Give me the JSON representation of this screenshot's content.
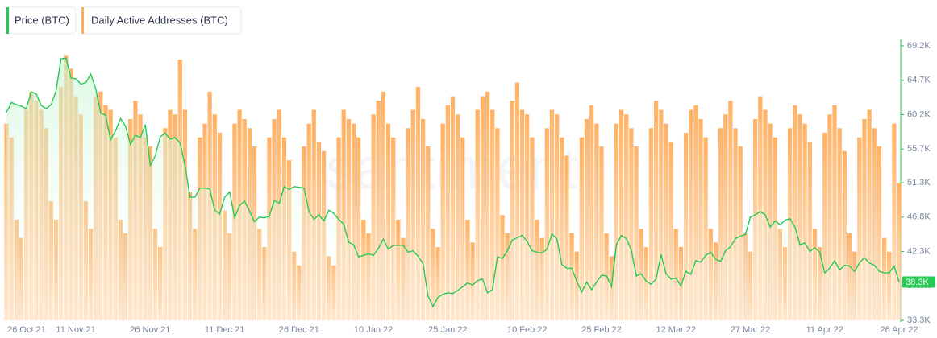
{
  "chart_data": {
    "type": "bar-line",
    "watermark": "santiment",
    "categories": [
      "26 Oct 21",
      null,
      null,
      null,
      null,
      null,
      null,
      null,
      null,
      null,
      null,
      null,
      null,
      null,
      "11 Nov 21",
      null,
      null,
      null,
      null,
      null,
      null,
      null,
      null,
      null,
      null,
      null,
      null,
      null,
      null,
      "26 Nov 21",
      null,
      null,
      null,
      null,
      null,
      null,
      null,
      null,
      null,
      null,
      null,
      null,
      null,
      null,
      "11 Dec 21",
      null,
      null,
      null,
      null,
      null,
      null,
      null,
      null,
      null,
      null,
      null,
      null,
      null,
      null,
      "26 Dec 21",
      null,
      null,
      null,
      null,
      null,
      null,
      null,
      null,
      null,
      null,
      null,
      null,
      null,
      null,
      "10 Jan 22",
      null,
      null,
      null,
      null,
      null,
      null,
      null,
      null,
      null,
      null,
      null,
      null,
      null,
      null,
      "25 Jan 22",
      null,
      null,
      null,
      null,
      null,
      null,
      null,
      null,
      null,
      null,
      null,
      null,
      null,
      null,
      null,
      "10 Feb 22",
      null,
      null,
      null,
      null,
      null,
      null,
      null,
      null,
      null,
      null,
      null,
      null,
      null,
      null,
      "25 Feb 22",
      null,
      null,
      null,
      null,
      null,
      null,
      null,
      null,
      null,
      null,
      null,
      null,
      null,
      null,
      "12 Mar 22",
      null,
      null,
      null,
      null,
      null,
      null,
      null,
      null,
      null,
      null,
      null,
      null,
      null,
      null,
      "27 Mar 22",
      null,
      null,
      null,
      null,
      null,
      null,
      null,
      null,
      null,
      null,
      null,
      null,
      null,
      null,
      "11 Apr 22",
      null,
      null,
      null,
      null,
      null,
      null,
      null,
      null,
      null,
      null,
      null,
      null,
      null,
      null,
      "26 Apr 22"
    ],
    "series": [
      {
        "name": "Price (BTC)",
        "color": "#26c953",
        "kind": "line",
        "values": [
          60500,
          61800,
          61500,
          61300,
          61000,
          63200,
          62900,
          61400,
          61000,
          61500,
          63300,
          67500,
          67600,
          65000,
          64900,
          64200,
          64400,
          65500,
          63600,
          60400,
          60100,
          56900,
          58100,
          59700,
          58700,
          56300,
          57500,
          57200,
          58900,
          53600,
          54800,
          57300,
          57800,
          57000,
          57200,
          56500,
          53600,
          49400,
          49400,
          50600,
          50600,
          50500,
          47700,
          47200,
          49400,
          50100,
          46700,
          48300,
          48900,
          47600,
          46200,
          46800,
          46700,
          46900,
          49000,
          48600,
          50800,
          50400,
          50800,
          50700,
          50600,
          47500,
          46500,
          47100,
          46300,
          47700,
          47300,
          46500,
          45900,
          43500,
          43200,
          41600,
          41800,
          42000,
          41800,
          42700,
          43900,
          42600,
          43100,
          43100,
          43100,
          42200,
          42400,
          41700,
          40700,
          36500,
          35100,
          36300,
          36700,
          36900,
          36800,
          37200,
          37700,
          38200,
          37900,
          38500,
          38700,
          36900,
          37300,
          41600,
          41400,
          42400,
          43800,
          44100,
          44400,
          43600,
          42400,
          42200,
          42100,
          42600,
          44600,
          43900,
          40600,
          40100,
          40100,
          38400,
          37000,
          38300,
          37300,
          38300,
          39200,
          39100,
          37700,
          43200,
          44400,
          44000,
          42500,
          39100,
          39400,
          38400,
          38000,
          38700,
          41900,
          39400,
          38700,
          38800,
          37800,
          39700,
          39300,
          41100,
          40900,
          41800,
          42200,
          41300,
          41000,
          42400,
          42900,
          44000,
          44300,
          44500,
          46800,
          47100,
          47500,
          47100,
          45500,
          46300,
          45800,
          46400,
          46600,
          45500,
          43200,
          43400,
          42300,
          42800,
          42200,
          39500,
          40100,
          41100,
          39900,
          40500,
          40400,
          39700,
          40800,
          41500,
          40800,
          40500,
          39700,
          39500,
          39500,
          40400,
          38300
        ],
        "value_labels": [
          null,
          null,
          null,
          null,
          null,
          null,
          null,
          null,
          null,
          null,
          null,
          null,
          null,
          null,
          null,
          null,
          null,
          null,
          null,
          null,
          null,
          null,
          null,
          null,
          null,
          null,
          null,
          null,
          null,
          null,
          null,
          null,
          null,
          null,
          null,
          null,
          null,
          null,
          null,
          null,
          null,
          null,
          null,
          null,
          null,
          null,
          null,
          null,
          null,
          null,
          null,
          null,
          null,
          null,
          null,
          null,
          null,
          null,
          null,
          null,
          null,
          null,
          null,
          null,
          null,
          null,
          null,
          null,
          null,
          null,
          null,
          null,
          null,
          null,
          null,
          null,
          null,
          null,
          null,
          null,
          null,
          null,
          null,
          null,
          null,
          null,
          null,
          null,
          null,
          null,
          null,
          null,
          null,
          null,
          null,
          null,
          null,
          null,
          null,
          null,
          null,
          null,
          null,
          null,
          null,
          null,
          null,
          null,
          null,
          null,
          null,
          null,
          null,
          null,
          null,
          null,
          null,
          null,
          null,
          null,
          null,
          null,
          null,
          null,
          null,
          null,
          null,
          null,
          null,
          null,
          null,
          null,
          null,
          null,
          null,
          null,
          null,
          null,
          null,
          null,
          null,
          null,
          null,
          null,
          null,
          null,
          null,
          null,
          null,
          null,
          null,
          null,
          null,
          null,
          null,
          null,
          null,
          null,
          null,
          null,
          null,
          null,
          null,
          null,
          null,
          null,
          null,
          null,
          null,
          null,
          null,
          null,
          null,
          null,
          null,
          null,
          null,
          null,
          null,
          null,
          "38.3K"
        ]
      },
      {
        "name": "Daily Active Addresses (BTC)",
        "color": "#ffad5c",
        "kind": "bar",
        "axis": "y2",
        "values": [
          930000,
          900000,
          720000,
          680000,
          960000,
          1000000,
          980000,
          960000,
          920000,
          760000,
          720000,
          1010000,
          1080000,
          1050000,
          990000,
          950000,
          760000,
          700000,
          990000,
          1000000,
          970000,
          960000,
          900000,
          720000,
          690000,
          940000,
          980000,
          950000,
          900000,
          880000,
          700000,
          660000,
          920000,
          960000,
          950000,
          1070000,
          960000,
          780000,
          700000,
          900000,
          930000,
          1000000,
          950000,
          910000,
          740000,
          690000,
          930000,
          960000,
          940000,
          920000,
          880000,
          700000,
          660000,
          900000,
          940000,
          960000,
          900000,
          850000,
          650000,
          620000,
          880000,
          930000,
          960000,
          890000,
          870000,
          640000,
          620000,
          900000,
          960000,
          940000,
          930000,
          900000,
          720000,
          690000,
          950000,
          980000,
          1000000,
          930000,
          900000,
          720000,
          680000,
          920000,
          960000,
          1010000,
          940000,
          880000,
          700000,
          660000,
          930000,
          970000,
          990000,
          950000,
          900000,
          720000,
          670000,
          960000,
          990000,
          1000000,
          960000,
          920000,
          730000,
          690000,
          980000,
          1020000,
          960000,
          950000,
          900000,
          720000,
          680000,
          920000,
          960000,
          950000,
          900000,
          860000,
          690000,
          650000,
          900000,
          940000,
          970000,
          930000,
          880000,
          690000,
          640000,
          930000,
          960000,
          950000,
          920000,
          880000,
          700000,
          660000,
          920000,
          980000,
          960000,
          930000,
          890000,
          700000,
          660000,
          910000,
          960000,
          970000,
          940000,
          900000,
          700000,
          670000,
          920000,
          950000,
          980000,
          920000,
          880000,
          690000,
          650000,
          940000,
          990000,
          960000,
          930000,
          900000,
          700000,
          660000,
          920000,
          970000,
          950000,
          930000,
          890000,
          700000,
          660000,
          910000,
          950000,
          970000,
          920000,
          870000,
          690000,
          650000,
          900000,
          940000,
          960000,
          920000,
          880000,
          680000,
          650000,
          930000,
          800000
        ]
      }
    ],
    "ylim": [
      33300,
      69200
    ],
    "yticks": [
      {
        "value": 33300,
        "label": "33.3K"
      },
      {
        "value": 37800,
        "label": "37.8K"
      },
      {
        "value": 42300,
        "label": "42.3K"
      },
      {
        "value": 46800,
        "label": "46.8K"
      },
      {
        "value": 51300,
        "label": "51.3K"
      },
      {
        "value": 55700,
        "label": "55.7K"
      },
      {
        "value": 60200,
        "label": "60.2K"
      },
      {
        "value": 64700,
        "label": "64.7K"
      },
      {
        "value": 69200,
        "label": "69.2K"
      }
    ],
    "y2lim": [
      500000,
      1100000
    ]
  }
}
